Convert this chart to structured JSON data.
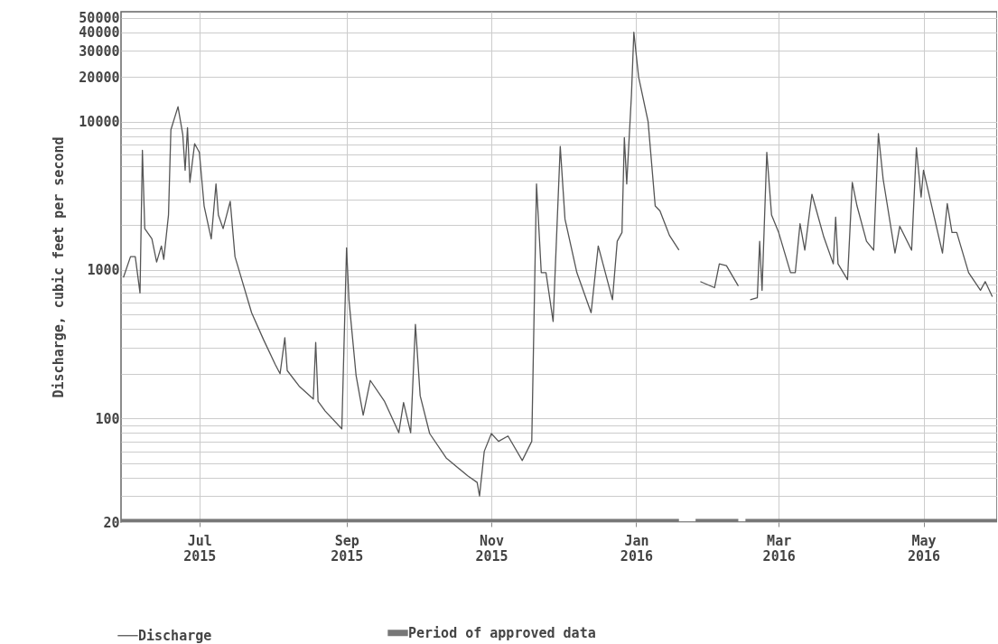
{
  "chart_data": {
    "type": "line",
    "ylabel": "Discharge, cubic feet per second",
    "log": true,
    "grid": true,
    "legend": "bottom",
    "xlim": [
      "2015-05-29",
      "2016-06-01"
    ],
    "xticks": [
      {
        "value": "2015-07-01",
        "label": "Jul 2015"
      },
      {
        "value": "2015-09-01",
        "label": "Sep 2015"
      },
      {
        "value": "2015-11-01",
        "label": "Nov 2015"
      },
      {
        "value": "2016-01-01",
        "label": "Jan 2016"
      },
      {
        "value": "2016-03-01",
        "label": "Mar 2016"
      },
      {
        "value": "2016-05-01",
        "label": "May 2016"
      }
    ],
    "ylim": [
      20,
      55000
    ],
    "yticks": [
      20,
      {
        "value": 30,
        "label": null
      },
      {
        "value": 40,
        "label": null
      },
      {
        "value": 50,
        "label": null
      },
      {
        "value": 60,
        "label": null
      },
      {
        "value": 70,
        "label": null
      },
      {
        "value": 80,
        "label": null
      },
      {
        "value": 90,
        "label": null
      },
      100,
      {
        "value": 200,
        "label": null
      },
      {
        "value": 300,
        "label": null
      },
      {
        "value": 400,
        "label": null
      },
      {
        "value": 500,
        "label": null
      },
      {
        "value": 600,
        "label": null
      },
      {
        "value": 700,
        "label": null
      },
      {
        "value": 800,
        "label": null
      },
      {
        "value": 900,
        "label": null
      },
      1000,
      {
        "value": 2000,
        "label": null
      },
      {
        "value": 3000,
        "label": null
      },
      {
        "value": 4000,
        "label": null
      },
      {
        "value": 5000,
        "label": null
      },
      {
        "value": 6000,
        "label": null
      },
      {
        "value": 7000,
        "label": null
      },
      {
        "value": 8000,
        "label": null
      },
      {
        "value": 9000,
        "label": null
      },
      10000,
      20000,
      30000,
      40000,
      50000
    ],
    "series": [
      {
        "name": "Discharge",
        "color": "#555555",
        "x": [
          "2015-05-30",
          "2015-06-02",
          "2015-06-04",
          "2015-06-06",
          "2015-06-07",
          "2015-06-08",
          "2015-06-11",
          "2015-06-13",
          "2015-06-15",
          "2015-06-16",
          "2015-06-18",
          "2015-06-19",
          "2015-06-22",
          "2015-06-24",
          "2015-06-25",
          "2015-06-26",
          "2015-06-27",
          "2015-06-29",
          "2015-07-01",
          "2015-07-03",
          "2015-07-06",
          "2015-07-08",
          "2015-07-09",
          "2015-07-11",
          "2015-07-14",
          "2015-07-16",
          "2015-07-18",
          "2015-07-23",
          "2015-07-28",
          "2015-08-02",
          "2015-08-04",
          "2015-08-06",
          "2015-08-07",
          "2015-08-12",
          "2015-08-18",
          "2015-08-19",
          "2015-08-20",
          "2015-08-23",
          "2015-08-30",
          "2015-09-01",
          "2015-09-02",
          "2015-09-05",
          "2015-09-08",
          "2015-09-11",
          "2015-09-17",
          "2015-09-23",
          "2015-09-25",
          "2015-09-28",
          "2015-09-30",
          "2015-10-02",
          "2015-10-06",
          "2015-10-13",
          "2015-10-22",
          "2015-10-26",
          "2015-10-27",
          "2015-10-29",
          "2015-11-01",
          "2015-11-04",
          "2015-11-08",
          "2015-11-14",
          "2015-11-18",
          "2015-11-20",
          "2015-11-22",
          "2015-11-24",
          "2015-11-27",
          "2015-11-30",
          "2015-12-02",
          "2015-12-07",
          "2015-12-13",
          "2015-12-16",
          "2015-12-18",
          "2015-12-22",
          "2015-12-24",
          "2015-12-26",
          "2015-12-27",
          "2015-12-28",
          "2015-12-30",
          "2015-12-31",
          "2016-01-02",
          "2016-01-06",
          "2016-01-09",
          "2016-01-11",
          "2016-01-15",
          "2016-01-19",
          "2016-01-22",
          "2016-01-28",
          "2016-02-03",
          "2016-02-05",
          "2016-02-08",
          "2016-02-13",
          "2016-02-16",
          "2016-02-18",
          "2016-02-21",
          "2016-02-22",
          "2016-02-23",
          "2016-02-25",
          "2016-02-27",
          "2016-03-01",
          "2016-03-06",
          "2016-03-08",
          "2016-03-10",
          "2016-03-12",
          "2016-03-15",
          "2016-03-20",
          "2016-03-24",
          "2016-03-25",
          "2016-03-26",
          "2016-03-30",
          "2016-04-01",
          "2016-04-03",
          "2016-04-07",
          "2016-04-10",
          "2016-04-12",
          "2016-04-14",
          "2016-04-19",
          "2016-04-21",
          "2016-04-26",
          "2016-04-28",
          "2016-04-30",
          "2016-05-01",
          "2016-05-04",
          "2016-05-09",
          "2016-05-11",
          "2016-05-13",
          "2016-05-15",
          "2016-05-20",
          "2016-05-25",
          "2016-05-27",
          "2016-05-30"
        ],
        "values": [
          890,
          1230,
          1230,
          700,
          6400,
          1900,
          1620,
          1130,
          1450,
          1180,
          2350,
          8800,
          12600,
          8200,
          4700,
          9100,
          3900,
          7100,
          6200,
          2700,
          1620,
          3800,
          2350,
          1900,
          2900,
          1230,
          960,
          515,
          340,
          230,
          200,
          350,
          210,
          165,
          135,
          325,
          130,
          112,
          85,
          1410,
          630,
          195,
          105,
          180,
          130,
          80,
          128,
          80,
          430,
          142,
          79,
          54,
          41,
          37,
          30,
          60,
          79,
          70,
          76,
          52,
          70,
          3800,
          960,
          960,
          450,
          6800,
          2200,
          960,
          515,
          1450,
          1100,
          630,
          1560,
          1790,
          7800,
          3800,
          15200,
          40000,
          20000,
          10000,
          2700,
          2500,
          1710,
          1360,
          null,
          835,
          760,
          1100,
          1070,
          780,
          null,
          630,
          650,
          1560,
          730,
          6200,
          2350,
          1790,
          960,
          960,
          2050,
          1360,
          3240,
          1670,
          1100,
          2270,
          1100,
          860,
          3900,
          2700,
          1560,
          1360,
          8300,
          4100,
          1300,
          1970,
          1360,
          6660,
          3100,
          4700,
          2900,
          1300,
          2800,
          1790,
          1790,
          960,
          730,
          835,
          660
        ]
      },
      {
        "name": "Period of approved data",
        "color": "#777777",
        "x": [
          "2015-05-29",
          "2016-01-19",
          "2016-01-22",
          "2016-01-26",
          "2016-02-13",
          "2016-02-15",
          "2016-02-16",
          "2016-06-01"
        ],
        "values": [
          20,
          20,
          null,
          20,
          20,
          null,
          20,
          20
        ]
      }
    ]
  }
}
